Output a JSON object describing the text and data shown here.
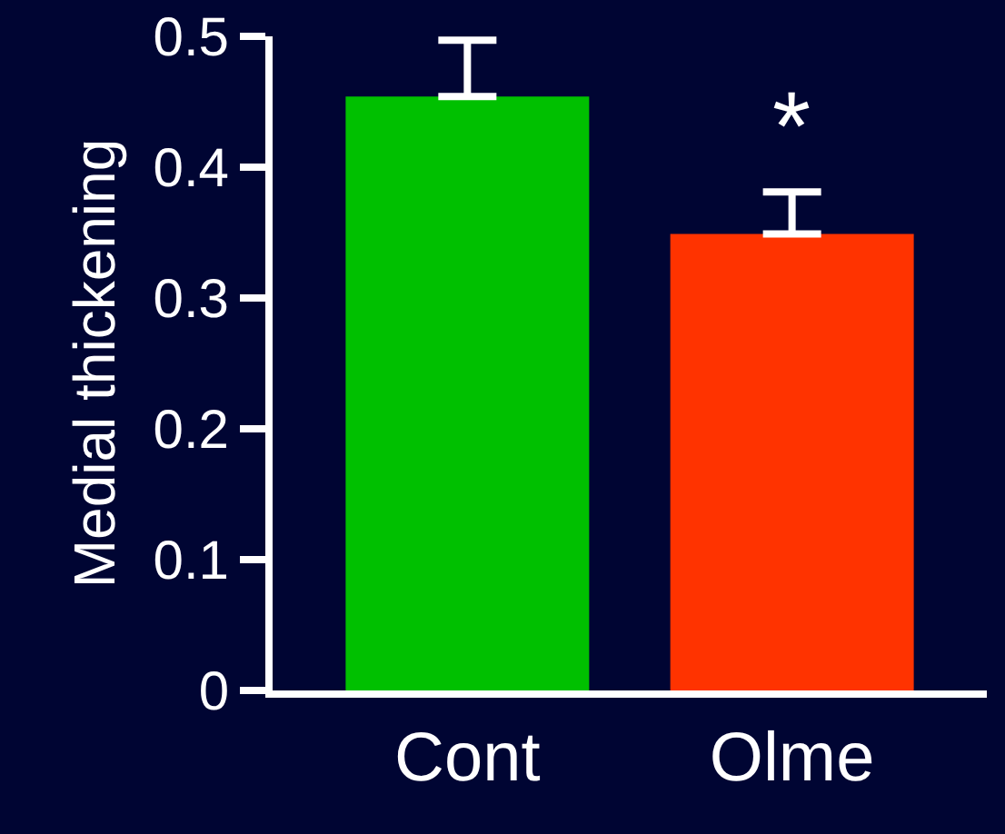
{
  "chart_data": {
    "type": "bar",
    "ylabel": "Medial thickening",
    "categories": [
      "Cont",
      "Olme"
    ],
    "values": [
      0.454,
      0.349
    ],
    "colors": [
      "#00c000",
      "#ff3300"
    ],
    "errors": [
      [
        0.454,
        0.497
      ],
      [
        0.349,
        0.381
      ]
    ],
    "ylim": [
      0,
      0.5
    ],
    "yticks": [
      0,
      0.1,
      0.2,
      0.3,
      0.4,
      0.5
    ],
    "annotations": [
      {
        "text": "*",
        "x": "Olme",
        "y": 0.381
      }
    ],
    "grid": false
  }
}
